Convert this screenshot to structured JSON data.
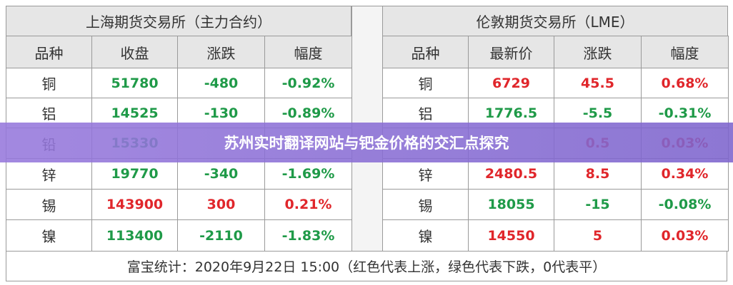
{
  "left": {
    "title": "上海期货交易所（主力合约）",
    "headers": [
      "品种",
      "收盘",
      "涨跌",
      "幅度"
    ],
    "rows": [
      [
        "铜",
        "51780",
        "-480",
        "-0.92%"
      ],
      [
        "铝",
        "14525",
        "-130",
        "-0.89%"
      ],
      [
        "铅",
        "15330",
        null,
        null
      ],
      [
        "锌",
        "19770",
        "-340",
        "-1.69%"
      ],
      [
        "锡",
        "143900",
        "300",
        "0.21%"
      ],
      [
        "镍",
        "113400",
        "-2110",
        "-1.83%"
      ]
    ],
    "row_colors": [
      "#1f9a48",
      "#1f9a48",
      "#1f9a48",
      "#1f9a48",
      "#e0262b",
      "#1f9a48"
    ]
  },
  "right": {
    "title": "伦敦期货交易所（LME）",
    "headers": [
      "品种",
      "最新价",
      "涨跌",
      "幅度"
    ],
    "rows": [
      [
        "铜",
        "6729",
        "45.5",
        "0.68%"
      ],
      [
        "铝",
        "1776.5",
        "-5.5",
        "-0.31%"
      ],
      [
        null,
        null,
        "0.5",
        "0.03%"
      ],
      [
        "锌",
        "2480.5",
        "8.5",
        "0.34%"
      ],
      [
        "锡",
        "18055",
        "-15",
        "-0.08%"
      ],
      [
        "镍",
        "14550",
        "5",
        "0.03%"
      ]
    ],
    "row_colors": [
      "#e0262b",
      "#1f9a48",
      "#e0262b",
      "#e0262b",
      "#1f9a48",
      "#e0262b"
    ]
  },
  "footer": "富宝统计：2020年9月22日 15:00（红色代表上涨，绿色代表下跌，0代表平）",
  "banner": "苏州实时翻译网站与钯金价格的交汇点探究"
}
